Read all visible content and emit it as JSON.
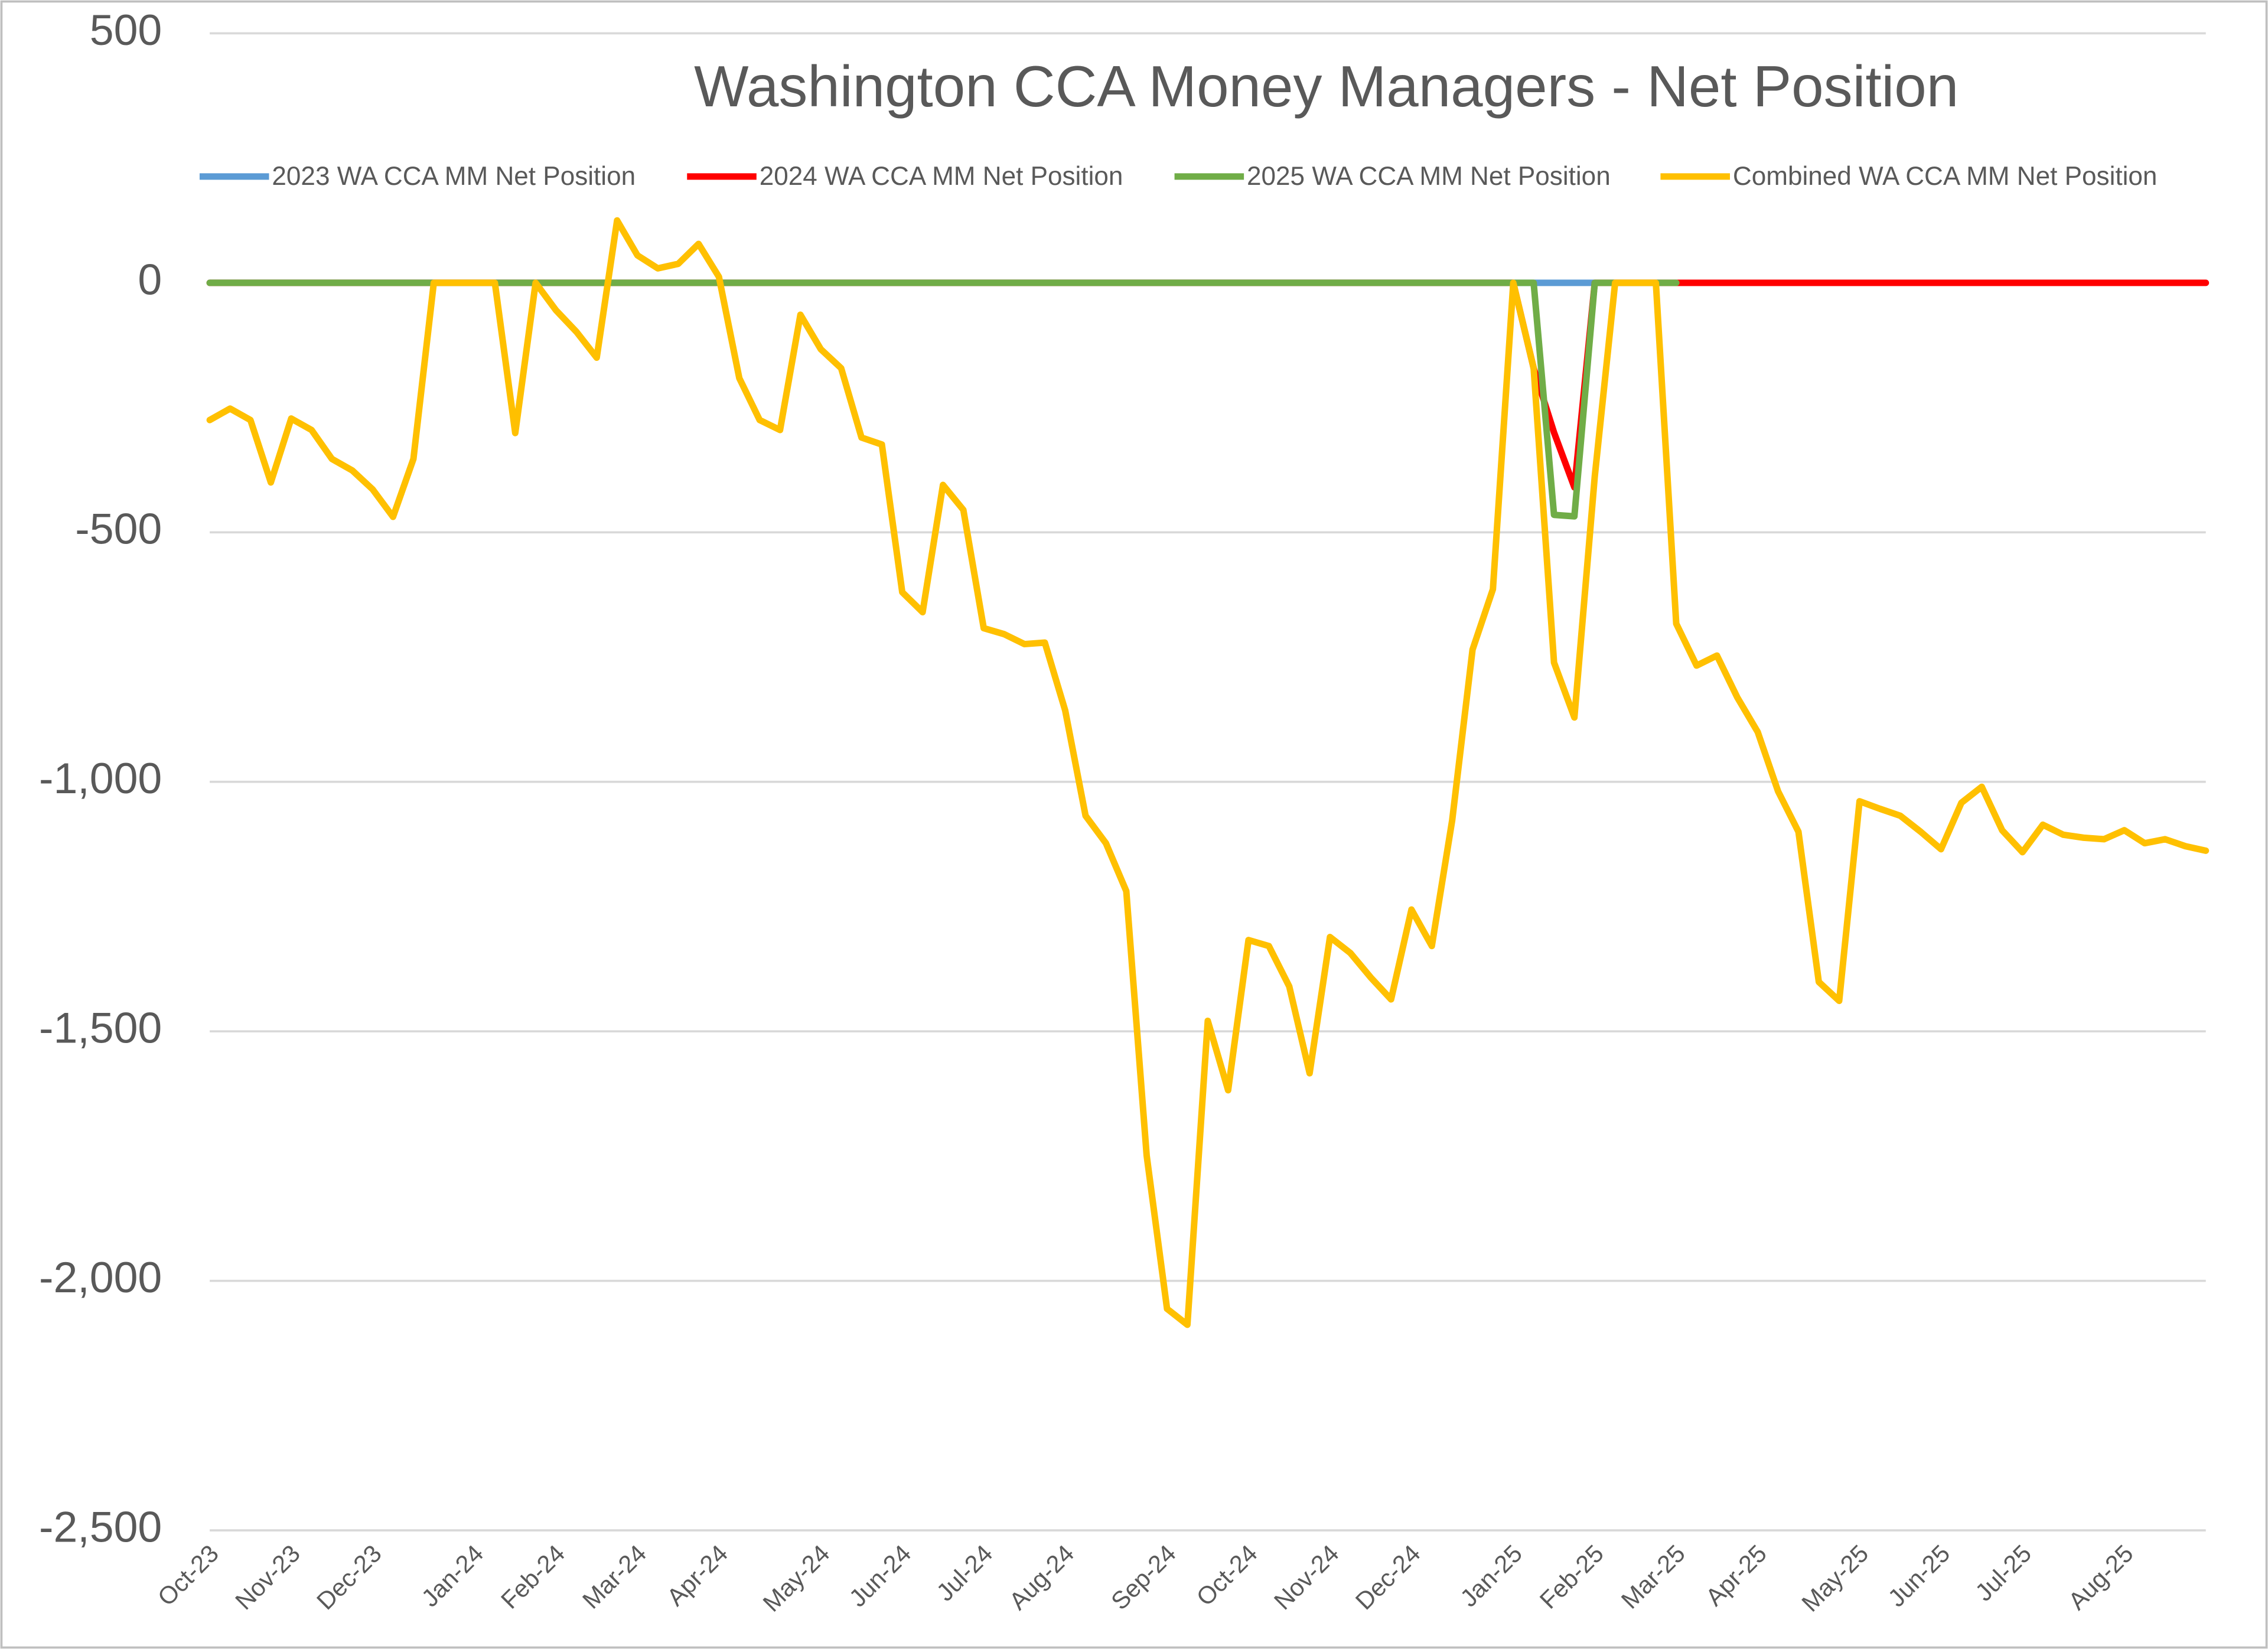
{
  "chart_data": {
    "type": "line",
    "title": "Washington CCA Money Managers - Net Position",
    "categories": [
      "Oct-23",
      null,
      null,
      null,
      "Nov-23",
      null,
      null,
      null,
      "Dec-23",
      null,
      null,
      null,
      null,
      "Jan-24",
      null,
      null,
      null,
      "Feb-24",
      null,
      null,
      null,
      "Mar-24",
      null,
      null,
      null,
      "Apr-24",
      null,
      null,
      null,
      null,
      "May-24",
      null,
      null,
      null,
      "Jun-24",
      null,
      null,
      null,
      "Jul-24",
      null,
      null,
      null,
      "Aug-24",
      null,
      null,
      null,
      null,
      "Sep-24",
      null,
      null,
      null,
      "Oct-24",
      null,
      null,
      null,
      "Nov-24",
      null,
      null,
      null,
      "Dec-24",
      null,
      null,
      null,
      null,
      "Jan-25",
      null,
      null,
      null,
      "Feb-25",
      null,
      null,
      null,
      "Mar-25",
      null,
      null,
      null,
      "Apr-25",
      null,
      null,
      null,
      null,
      "May-25",
      null,
      null,
      null,
      "Jun-25",
      null,
      null,
      null,
      "Jul-25",
      null,
      null,
      null,
      null,
      "Aug-25",
      null,
      null,
      null,
      null
    ],
    "series": [
      {
        "name": "2023 WA CCA MM Net Position",
        "color": "#5b9bd5",
        "values": [
          0,
          0,
          0,
          0,
          0,
          0,
          0,
          0,
          0,
          0,
          0,
          0,
          0,
          0,
          0,
          0,
          0,
          0,
          0,
          0,
          0,
          0,
          0,
          0,
          0,
          0,
          0,
          0,
          0,
          0,
          0,
          0,
          0,
          0,
          0,
          0,
          0,
          0,
          0,
          0,
          0,
          0,
          0,
          0,
          0,
          0,
          0,
          0,
          0,
          0,
          0,
          0,
          0,
          0,
          0,
          0,
          0,
          0,
          0,
          0,
          0,
          0,
          0,
          0,
          0,
          0,
          0,
          0,
          0,
          null,
          null,
          null,
          null,
          null,
          null,
          null,
          null,
          null,
          null,
          null,
          null,
          null,
          null,
          null,
          null,
          null,
          null,
          null,
          null,
          null,
          null,
          null,
          null,
          null,
          null,
          null,
          null,
          null,
          null
        ]
      },
      {
        "name": "2024 WA CCA MM Net Position",
        "color": "#ff0000",
        "values": [
          0,
          0,
          0,
          0,
          0,
          0,
          0,
          0,
          0,
          0,
          0,
          0,
          0,
          0,
          0,
          0,
          0,
          0,
          0,
          0,
          0,
          0,
          0,
          0,
          0,
          0,
          0,
          0,
          0,
          0,
          0,
          0,
          0,
          0,
          0,
          0,
          0,
          0,
          0,
          0,
          0,
          0,
          0,
          0,
          0,
          0,
          0,
          0,
          0,
          0,
          0,
          0,
          0,
          0,
          0,
          0,
          0,
          0,
          0,
          0,
          0,
          0,
          0,
          0,
          0,
          -171,
          -300,
          -410,
          0,
          0,
          0,
          0,
          0,
          0,
          0,
          0,
          0,
          0,
          0,
          0,
          0,
          0,
          0,
          0,
          0,
          0,
          0,
          0,
          0,
          0,
          0,
          0,
          0,
          0,
          0,
          0,
          0,
          0,
          0
        ]
      },
      {
        "name": "2025 WA CCA MM Net Position",
        "color": "#70ad47",
        "values": [
          0,
          0,
          0,
          0,
          0,
          0,
          0,
          0,
          0,
          0,
          0,
          0,
          0,
          0,
          0,
          0,
          0,
          0,
          0,
          0,
          0,
          0,
          0,
          0,
          0,
          0,
          0,
          0,
          0,
          0,
          0,
          0,
          0,
          0,
          0,
          0,
          0,
          0,
          0,
          0,
          0,
          0,
          0,
          0,
          0,
          0,
          0,
          0,
          0,
          0,
          0,
          0,
          0,
          0,
          0,
          0,
          0,
          0,
          0,
          0,
          0,
          0,
          0,
          0,
          0,
          0,
          -465,
          -468,
          0,
          0,
          0,
          0,
          0,
          null,
          null,
          null,
          null,
          null,
          null,
          null,
          null,
          null,
          null,
          null,
          null,
          null,
          null,
          null,
          null,
          null,
          null,
          null,
          null,
          null,
          null,
          null,
          null,
          null,
          null
        ]
      },
      {
        "name": "Combined WA CCA MM Net Position",
        "color": "#ffc000",
        "values": [
          -275,
          -252,
          -275,
          -400,
          -272,
          -295,
          -353,
          -376,
          -414,
          -469,
          -353,
          0,
          0,
          0,
          0,
          -301,
          0,
          -55,
          -98,
          -150,
          125,
          55,
          29,
          38,
          78,
          12,
          -191,
          -275,
          -295,
          -64,
          -133,
          -171,
          -310,
          -324,
          -620,
          -660,
          -405,
          -455,
          -692,
          -704,
          -724,
          -721,
          -857,
          -1068,
          -1123,
          -1219,
          -1749,
          -2056,
          -2088,
          -1479,
          -1618,
          -1317,
          -1329,
          -1410,
          -1584,
          -1311,
          -1343,
          -1392,
          -1436,
          -1256,
          -1329,
          -1077,
          -735,
          -614,
          0,
          -171,
          -761,
          -871,
          -388,
          0,
          0,
          0,
          -683,
          -767,
          -747,
          -831,
          -900,
          -1019,
          -1100,
          -1401,
          -1439,
          -1039,
          -1054,
          -1068,
          -1100,
          -1135,
          -1042,
          -1010,
          -1097,
          -1141,
          -1086,
          -1106,
          -1112,
          -1115,
          -1097,
          -1123,
          -1115,
          -1129,
          -1138
        ]
      }
    ],
    "ylim": [
      -2500,
      500
    ],
    "yticks": [
      {
        "value": -2500,
        "label": "-2,500"
      },
      {
        "value": -2000,
        "label": "-2,000"
      },
      {
        "value": -1500,
        "label": "-1,500"
      },
      {
        "value": -1000,
        "label": "-1,000"
      },
      -500,
      0,
      500
    ],
    "grid": true,
    "legend": "top"
  }
}
